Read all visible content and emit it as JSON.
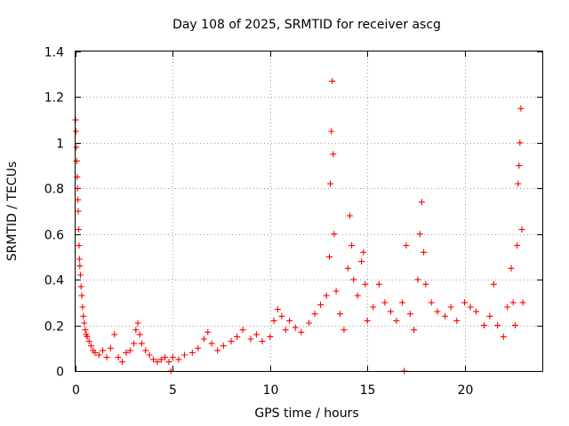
{
  "chart_data": {
    "type": "scatter",
    "title": "Day 108 of 2025, SRMTID for receiver ascg",
    "xlabel": "GPS time / hours",
    "ylabel": "SRMTID / TECUs",
    "xlim": [
      0,
      24
    ],
    "ylim": [
      0,
      1.4
    ],
    "xticks": [
      0,
      5,
      10,
      15,
      20
    ],
    "xtick_labels": [
      "0",
      "5",
      "10",
      "15",
      "20"
    ],
    "yticks": [
      0,
      0.2,
      0.4,
      0.6,
      0.8,
      1.0,
      1.2,
      1.4
    ],
    "ytick_labels": [
      "0",
      "0.2",
      "0.4",
      "0.6",
      "0.8",
      "1",
      "1.2",
      "1.4"
    ],
    "grid": true,
    "marker": "+",
    "series": [
      {
        "name": "SRMTID",
        "color": "#ff0000",
        "points": [
          [
            0.0,
            1.1
          ],
          [
            0.02,
            1.05
          ],
          [
            0.04,
            0.98
          ],
          [
            0.06,
            0.92
          ],
          [
            0.08,
            0.85
          ],
          [
            0.1,
            0.8
          ],
          [
            0.12,
            0.75
          ],
          [
            0.14,
            0.7
          ],
          [
            0.16,
            0.62
          ],
          [
            0.18,
            0.55
          ],
          [
            0.2,
            0.49
          ],
          [
            0.22,
            0.46
          ],
          [
            0.25,
            0.42
          ],
          [
            0.28,
            0.37
          ],
          [
            0.32,
            0.33
          ],
          [
            0.36,
            0.28
          ],
          [
            0.4,
            0.24
          ],
          [
            0.45,
            0.21
          ],
          [
            0.5,
            0.18
          ],
          [
            0.55,
            0.16
          ],
          [
            0.6,
            0.15
          ],
          [
            0.7,
            0.13
          ],
          [
            0.8,
            0.11
          ],
          [
            0.9,
            0.09
          ],
          [
            1.0,
            0.08
          ],
          [
            1.2,
            0.07
          ],
          [
            1.4,
            0.09
          ],
          [
            1.6,
            0.06
          ],
          [
            1.8,
            0.1
          ],
          [
            2.0,
            0.16
          ],
          [
            2.2,
            0.06
          ],
          [
            2.4,
            0.04
          ],
          [
            2.6,
            0.08
          ],
          [
            2.8,
            0.09
          ],
          [
            3.0,
            0.12
          ],
          [
            3.1,
            0.18
          ],
          [
            3.2,
            0.21
          ],
          [
            3.3,
            0.16
          ],
          [
            3.4,
            0.12
          ],
          [
            3.6,
            0.09
          ],
          [
            3.8,
            0.07
          ],
          [
            4.0,
            0.05
          ],
          [
            4.2,
            0.04
          ],
          [
            4.4,
            0.05
          ],
          [
            4.6,
            0.06
          ],
          [
            4.8,
            0.04
          ],
          [
            4.9,
            0.0
          ],
          [
            5.0,
            0.06
          ],
          [
            5.3,
            0.05
          ],
          [
            5.6,
            0.07
          ],
          [
            6.0,
            0.08
          ],
          [
            6.3,
            0.1
          ],
          [
            6.6,
            0.14
          ],
          [
            6.8,
            0.17
          ],
          [
            7.0,
            0.12
          ],
          [
            7.3,
            0.09
          ],
          [
            7.6,
            0.11
          ],
          [
            8.0,
            0.13
          ],
          [
            8.3,
            0.15
          ],
          [
            8.6,
            0.18
          ],
          [
            9.0,
            0.14
          ],
          [
            9.3,
            0.16
          ],
          [
            9.6,
            0.13
          ],
          [
            10.0,
            0.15
          ],
          [
            10.2,
            0.22
          ],
          [
            10.4,
            0.27
          ],
          [
            10.6,
            0.24
          ],
          [
            10.8,
            0.18
          ],
          [
            11.0,
            0.22
          ],
          [
            11.3,
            0.19
          ],
          [
            11.6,
            0.17
          ],
          [
            12.0,
            0.21
          ],
          [
            12.3,
            0.25
          ],
          [
            12.6,
            0.29
          ],
          [
            12.9,
            0.33
          ],
          [
            13.05,
            0.5
          ],
          [
            13.1,
            0.82
          ],
          [
            13.15,
            1.05
          ],
          [
            13.2,
            1.27
          ],
          [
            13.25,
            0.95
          ],
          [
            13.3,
            0.6
          ],
          [
            13.4,
            0.35
          ],
          [
            13.6,
            0.25
          ],
          [
            13.8,
            0.18
          ],
          [
            14.0,
            0.45
          ],
          [
            14.1,
            0.68
          ],
          [
            14.2,
            0.55
          ],
          [
            14.3,
            0.4
          ],
          [
            14.5,
            0.33
          ],
          [
            14.7,
            0.48
          ],
          [
            14.8,
            0.52
          ],
          [
            14.9,
            0.38
          ],
          [
            15.0,
            0.22
          ],
          [
            15.3,
            0.28
          ],
          [
            15.6,
            0.38
          ],
          [
            15.9,
            0.3
          ],
          [
            16.2,
            0.26
          ],
          [
            16.5,
            0.22
          ],
          [
            16.8,
            0.3
          ],
          [
            16.9,
            0.0
          ],
          [
            17.0,
            0.55
          ],
          [
            17.2,
            0.25
          ],
          [
            17.4,
            0.18
          ],
          [
            17.6,
            0.4
          ],
          [
            17.7,
            0.6
          ],
          [
            17.8,
            0.74
          ],
          [
            17.9,
            0.52
          ],
          [
            18.0,
            0.38
          ],
          [
            18.3,
            0.3
          ],
          [
            18.6,
            0.26
          ],
          [
            19.0,
            0.24
          ],
          [
            19.3,
            0.28
          ],
          [
            19.6,
            0.22
          ],
          [
            20.0,
            0.3
          ],
          [
            20.3,
            0.28
          ],
          [
            20.6,
            0.26
          ],
          [
            21.0,
            0.2
          ],
          [
            21.3,
            0.24
          ],
          [
            21.5,
            0.38
          ],
          [
            21.7,
            0.2
          ],
          [
            22.0,
            0.15
          ],
          [
            22.2,
            0.28
          ],
          [
            22.4,
            0.45
          ],
          [
            22.5,
            0.3
          ],
          [
            22.6,
            0.2
          ],
          [
            22.7,
            0.55
          ],
          [
            22.75,
            0.82
          ],
          [
            22.8,
            0.9
          ],
          [
            22.85,
            1.0
          ],
          [
            22.9,
            1.15
          ],
          [
            22.95,
            0.62
          ],
          [
            23.0,
            0.3
          ]
        ]
      }
    ]
  }
}
